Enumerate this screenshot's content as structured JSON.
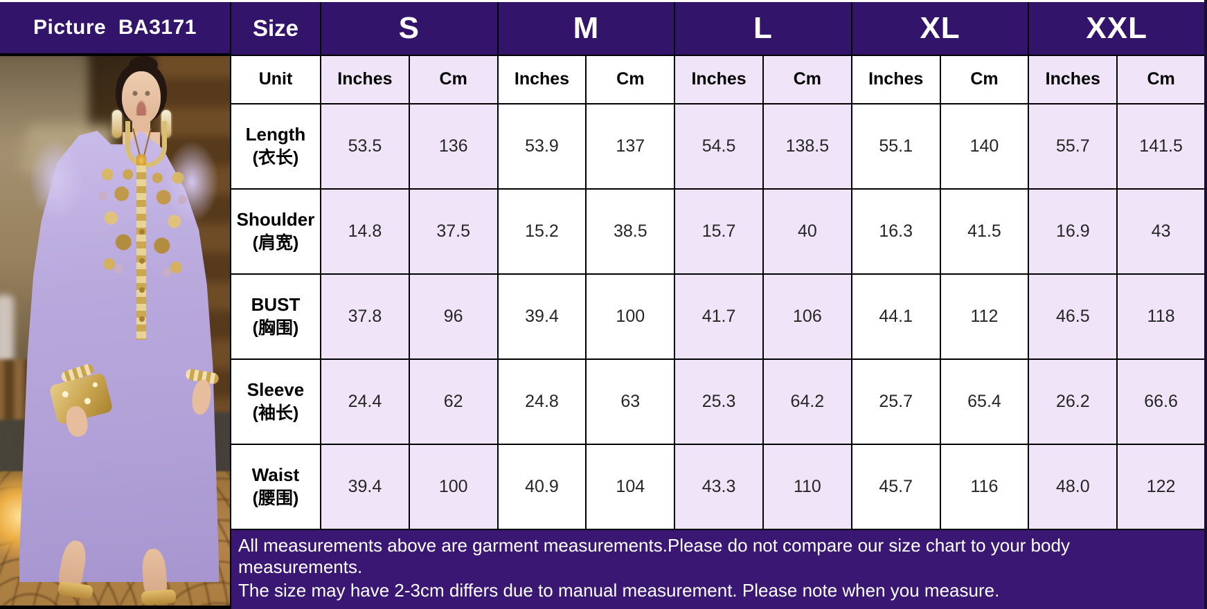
{
  "header": {
    "picture_label": "Picture  BA3171",
    "size_label": "Size",
    "sizes": [
      "S",
      "M",
      "L",
      "XL",
      "XXL"
    ]
  },
  "subheader": {
    "unit_label": "Unit",
    "unit_columns": [
      "Inches",
      "Cm"
    ]
  },
  "measurements": [
    {
      "label_en": "Length",
      "label_zh": "(衣长)",
      "values": [
        "53.5",
        "136",
        "53.9",
        "137",
        "54.5",
        "138.5",
        "55.1",
        "140",
        "55.7",
        "141.5"
      ]
    },
    {
      "label_en": "Shoulder",
      "label_zh": "(肩宽)",
      "values": [
        "14.8",
        "37.5",
        "15.2",
        "38.5",
        "15.7",
        "40",
        "16.3",
        "41.5",
        "16.9",
        "43"
      ]
    },
    {
      "label_en": "BUST",
      "label_zh": "(胸围)",
      "values": [
        "37.8",
        "96",
        "39.4",
        "100",
        "41.7",
        "106",
        "44.1",
        "112",
        "46.5",
        "118"
      ]
    },
    {
      "label_en": "Sleeve",
      "label_zh": "(袖长)",
      "values": [
        "24.4",
        "62",
        "24.8",
        "63",
        "25.3",
        "64.2",
        "25.7",
        "65.4",
        "26.2",
        "66.6"
      ]
    },
    {
      "label_en": "Waist",
      "label_zh": "(腰围)",
      "values": [
        "39.4",
        "100",
        "40.9",
        "104",
        "43.3",
        "110",
        "45.7",
        "116",
        "48.0",
        "122"
      ]
    }
  ],
  "notes": {
    "line1": "All measurements above are garment measurements.Please do not compare our size chart to your body measurements.",
    "line2": "The size may have 2-3cm differs due to manual measurement. Please note when you measure."
  },
  "colors": {
    "header_bg": "#32156B",
    "notes_bg": "#3A1772",
    "cell_lavender": "#F0E4F8",
    "cell_white": "#FFFFFF",
    "border": "#000000",
    "header_text": "#FFFFFF",
    "value_text": "#262626",
    "dress_lavender": "#B3A3D9",
    "embroidery_gold": "#C9A44F"
  },
  "photo": {
    "subject": "model wearing lavender abaya dress with gold embroidery"
  }
}
